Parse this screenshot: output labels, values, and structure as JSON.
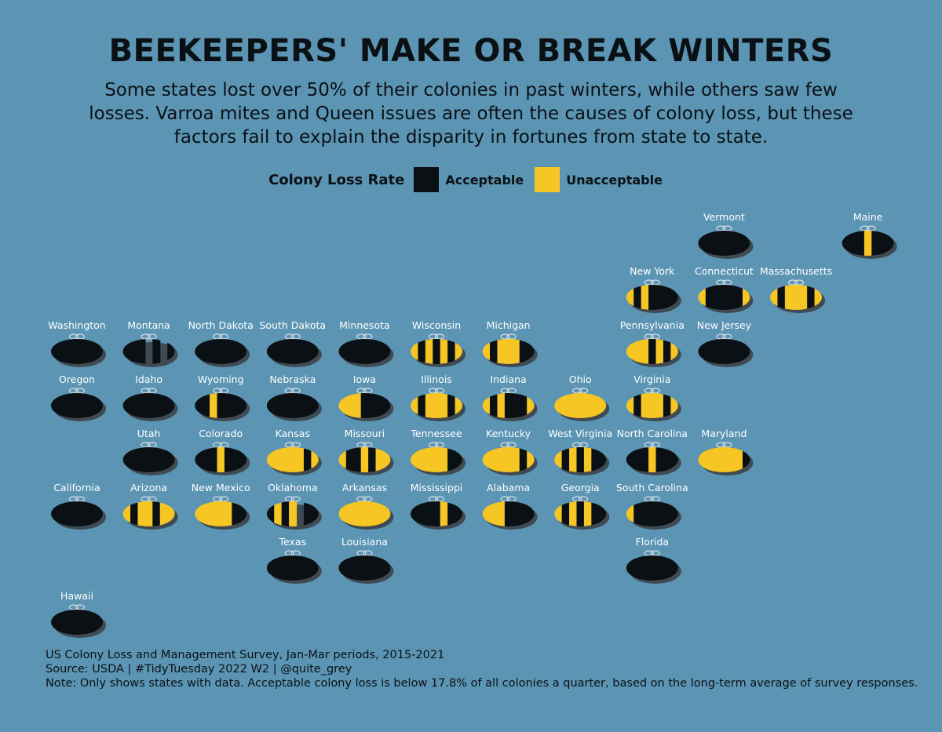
{
  "title": "BEEKEEPERS' MAKE OR BREAK WINTERS",
  "subtitle": "Some states lost over 50% of their colonies in past winters, while others saw few losses. Varroa mites and Queen issues are often the causes of colony loss, but these factors fail to explain the disparity in fortunes from state to state.",
  "legend": {
    "title": "Colony Loss Rate",
    "items": [
      {
        "label": "Acceptable",
        "color": "#0b1014"
      },
      {
        "label": "Unacceptable",
        "color": "#f6c624"
      }
    ]
  },
  "colors": {
    "background": "#5b95b3",
    "acceptable": "#0b1014",
    "unacceptable": "#f6c624",
    "shadow": "#3f4a52"
  },
  "footer": {
    "line1": "US Colony Loss and Management Survey, Jan-Mar periods, 2015-2021",
    "line2": "Source: USDA  |  #TidyTuesday 2022 W2  |  @quite_grey",
    "line3": "Note: Only shows states with data. Acceptable colony loss is below 17.8% of all colonies a quarter, based on the long-term average of survey responses."
  },
  "chart_data": {
    "type": "heatmap",
    "description_years": [
      2015,
      2016,
      2017,
      2018,
      2019,
      2020,
      2021
    ],
    "states": [
      {
        "name": "Vermont",
        "col": 9,
        "row": 0,
        "years": [
          "A",
          "A",
          "A",
          "A",
          "A",
          "A",
          "A"
        ]
      },
      {
        "name": "Maine",
        "col": 11,
        "row": 0,
        "years": [
          "A",
          "A",
          "A",
          "U",
          "A",
          "A",
          "A"
        ]
      },
      {
        "name": "New York",
        "col": 8,
        "row": 1,
        "years": [
          "U",
          "A",
          "U",
          "A",
          "A",
          "A",
          "A"
        ]
      },
      {
        "name": "Connecticut",
        "col": 9,
        "row": 1,
        "years": [
          "U",
          "A",
          "A",
          "A",
          "A",
          "A",
          "U"
        ]
      },
      {
        "name": "Massachusetts",
        "col": 10,
        "row": 1,
        "years": [
          "U",
          "A",
          "U",
          "U",
          "U",
          "A",
          "U"
        ]
      },
      {
        "name": "Washington",
        "col": 0,
        "row": 2,
        "years": [
          "A",
          "A",
          "A",
          "A",
          "A",
          "A",
          "A"
        ]
      },
      {
        "name": "Montana",
        "col": 1,
        "row": 2,
        "years": [
          "A",
          "A",
          "A",
          "N",
          "A",
          "N",
          "A"
        ]
      },
      {
        "name": "North Dakota",
        "col": 2,
        "row": 2,
        "years": [
          "A",
          "A",
          "A",
          "A",
          "A",
          "A",
          "A"
        ]
      },
      {
        "name": "South Dakota",
        "col": 3,
        "row": 2,
        "years": [
          "A",
          "A",
          "A",
          "A",
          "A",
          "A",
          "A"
        ]
      },
      {
        "name": "Minnesota",
        "col": 4,
        "row": 2,
        "years": [
          "A",
          "A",
          "A",
          "A",
          "A",
          "A",
          "A"
        ]
      },
      {
        "name": "Wisconsin",
        "col": 5,
        "row": 2,
        "years": [
          "U",
          "A",
          "U",
          "A",
          "U",
          "A",
          "U"
        ]
      },
      {
        "name": "Michigan",
        "col": 6,
        "row": 2,
        "years": [
          "U",
          "A",
          "U",
          "U",
          "U",
          "A",
          "A"
        ]
      },
      {
        "name": "Pennsylvania",
        "col": 8,
        "row": 2,
        "years": [
          "U",
          "U",
          "U",
          "A",
          "U",
          "A",
          "U"
        ]
      },
      {
        "name": "New Jersey",
        "col": 9,
        "row": 2,
        "years": [
          "A",
          "A",
          "A",
          "A",
          "A",
          "A",
          "A"
        ]
      },
      {
        "name": "Oregon",
        "col": 0,
        "row": 3,
        "years": [
          "A",
          "A",
          "A",
          "A",
          "A",
          "A",
          "A"
        ]
      },
      {
        "name": "Idaho",
        "col": 1,
        "row": 3,
        "years": [
          "A",
          "A",
          "A",
          "A",
          "A",
          "A",
          "A"
        ]
      },
      {
        "name": "Wyoming",
        "col": 2,
        "row": 3,
        "years": [
          "A",
          "A",
          "U",
          "A",
          "A",
          "A",
          "A"
        ]
      },
      {
        "name": "Nebraska",
        "col": 3,
        "row": 3,
        "years": [
          "A",
          "A",
          "A",
          "A",
          "A",
          "A",
          "A"
        ]
      },
      {
        "name": "Iowa",
        "col": 4,
        "row": 3,
        "years": [
          "U",
          "U",
          "U",
          "A",
          "A",
          "A",
          "A"
        ]
      },
      {
        "name": "Illinois",
        "col": 5,
        "row": 3,
        "years": [
          "U",
          "A",
          "U",
          "U",
          "U",
          "A",
          "U"
        ]
      },
      {
        "name": "Indiana",
        "col": 6,
        "row": 3,
        "years": [
          "U",
          "A",
          "U",
          "A",
          "A",
          "A",
          "U"
        ]
      },
      {
        "name": "Ohio",
        "col": 7,
        "row": 3,
        "years": [
          "U",
          "U",
          "U",
          "U",
          "U",
          "U",
          "U"
        ]
      },
      {
        "name": "Virginia",
        "col": 8,
        "row": 3,
        "years": [
          "U",
          "A",
          "U",
          "U",
          "U",
          "A",
          "U"
        ]
      },
      {
        "name": "Utah",
        "col": 1,
        "row": 4,
        "years": [
          "A",
          "A",
          "A",
          "A",
          "A",
          "A",
          "A"
        ]
      },
      {
        "name": "Colorado",
        "col": 2,
        "row": 4,
        "years": [
          "A",
          "A",
          "A",
          "U",
          "A",
          "A",
          "A"
        ]
      },
      {
        "name": "Kansas",
        "col": 3,
        "row": 4,
        "years": [
          "U",
          "U",
          "U",
          "U",
          "U",
          "A",
          "U"
        ]
      },
      {
        "name": "Missouri",
        "col": 4,
        "row": 4,
        "years": [
          "U",
          "A",
          "A",
          "U",
          "A",
          "U",
          "U"
        ]
      },
      {
        "name": "Tennessee",
        "col": 5,
        "row": 4,
        "years": [
          "U",
          "U",
          "U",
          "U",
          "U",
          "A",
          "A"
        ]
      },
      {
        "name": "Kentucky",
        "col": 6,
        "row": 4,
        "years": [
          "U",
          "U",
          "U",
          "U",
          "U",
          "A",
          "U"
        ]
      },
      {
        "name": "West Virginia",
        "col": 7,
        "row": 4,
        "years": [
          "U",
          "A",
          "U",
          "A",
          "U",
          "A",
          "A"
        ]
      },
      {
        "name": "North Carolina",
        "col": 8,
        "row": 4,
        "years": [
          "A",
          "A",
          "A",
          "U",
          "A",
          "A",
          "A"
        ]
      },
      {
        "name": "Maryland",
        "col": 9,
        "row": 4,
        "years": [
          "U",
          "U",
          "U",
          "U",
          "U",
          "U",
          "A"
        ]
      },
      {
        "name": "California",
        "col": 0,
        "row": 5,
        "years": [
          "A",
          "A",
          "A",
          "A",
          "A",
          "A",
          "A"
        ]
      },
      {
        "name": "Arizona",
        "col": 1,
        "row": 5,
        "years": [
          "U",
          "A",
          "U",
          "U",
          "A",
          "U",
          "U"
        ]
      },
      {
        "name": "New Mexico",
        "col": 2,
        "row": 5,
        "years": [
          "U",
          "U",
          "U",
          "U",
          "U",
          "A",
          "A"
        ]
      },
      {
        "name": "Oklahoma",
        "col": 3,
        "row": 5,
        "years": [
          "A",
          "U",
          "A",
          "U",
          "N",
          "A",
          "A"
        ]
      },
      {
        "name": "Arkansas",
        "col": 4,
        "row": 5,
        "years": [
          "U",
          "U",
          "U",
          "U",
          "U",
          "U",
          "U"
        ]
      },
      {
        "name": "Mississippi",
        "col": 5,
        "row": 5,
        "years": [
          "A",
          "A",
          "A",
          "A",
          "U",
          "A",
          "A"
        ]
      },
      {
        "name": "Alabama",
        "col": 6,
        "row": 5,
        "years": [
          "U",
          "U",
          "U",
          "A",
          "A",
          "A",
          "A"
        ]
      },
      {
        "name": "Georgia",
        "col": 7,
        "row": 5,
        "years": [
          "U",
          "A",
          "U",
          "A",
          "U",
          "A",
          "A"
        ]
      },
      {
        "name": "South Carolina",
        "col": 8,
        "row": 5,
        "years": [
          "U",
          "A",
          "A",
          "A",
          "A",
          "A",
          "A"
        ]
      },
      {
        "name": "Texas",
        "col": 3,
        "row": 6,
        "years": [
          "A",
          "A",
          "A",
          "A",
          "A",
          "A",
          "A"
        ]
      },
      {
        "name": "Louisiana",
        "col": 4,
        "row": 6,
        "years": [
          "A",
          "A",
          "A",
          "A",
          "A",
          "A",
          "A"
        ]
      },
      {
        "name": "Florida",
        "col": 8,
        "row": 6,
        "years": [
          "A",
          "A",
          "A",
          "A",
          "A",
          "A",
          "A"
        ]
      },
      {
        "name": "Hawaii",
        "col": 0,
        "row": 7,
        "years": [
          "A",
          "A",
          "A",
          "A",
          "A",
          "A",
          "A"
        ]
      }
    ]
  }
}
